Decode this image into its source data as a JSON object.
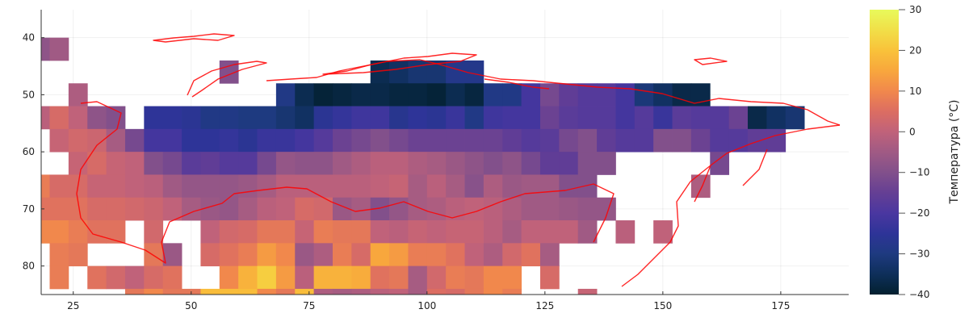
{
  "chart_data": {
    "type": "heatmap",
    "x": [
      18,
      22,
      26,
      30,
      34,
      38,
      42,
      46,
      50,
      54,
      58,
      62,
      66,
      70,
      74,
      78,
      82,
      86,
      90,
      94,
      98,
      102,
      106,
      110,
      114,
      118,
      122,
      126,
      130,
      134,
      138,
      142,
      146,
      150,
      154,
      158,
      162,
      166,
      170,
      174,
      178
    ],
    "y": [
      42,
      46,
      50,
      54,
      58,
      62,
      66,
      70,
      74,
      78,
      82,
      86
    ],
    "z": [
      [
        -8,
        -5,
        null,
        null,
        null,
        null,
        null,
        null,
        null,
        null,
        null,
        null,
        null,
        null,
        null,
        null,
        null,
        null,
        null,
        null,
        null,
        null,
        null,
        null,
        null,
        null,
        null,
        null,
        null,
        null,
        null,
        null,
        null,
        null,
        null,
        null,
        null,
        null,
        null,
        null,
        null
      ],
      [
        null,
        null,
        null,
        null,
        null,
        null,
        null,
        null,
        null,
        null,
        -10,
        null,
        null,
        null,
        null,
        null,
        null,
        null,
        -36,
        -34,
        -32,
        -32,
        -28,
        -28,
        null,
        null,
        null,
        null,
        null,
        null,
        null,
        null,
        null,
        null,
        null,
        null,
        null,
        null,
        null,
        null,
        null
      ],
      [
        null,
        null,
        -3,
        null,
        null,
        null,
        null,
        null,
        null,
        null,
        null,
        null,
        null,
        -29,
        -36,
        -39,
        -38,
        -37,
        -37,
        -38,
        -38,
        -39,
        -36,
        -38,
        -29,
        -29,
        -21,
        -12,
        -16,
        -18,
        -18,
        -21,
        -31,
        -34,
        -37,
        -37,
        null,
        null,
        null,
        null,
        null
      ],
      [
        -1,
        4,
        0,
        -8,
        -10,
        null,
        -25,
        -25,
        -26,
        -29,
        -29,
        -30,
        -30,
        -32,
        -34,
        -26,
        -24,
        -22,
        -22,
        -27,
        -25,
        -26,
        -23,
        -29,
        -22,
        -21,
        -21,
        -14,
        -17,
        -18,
        -18,
        -21,
        -18,
        -23,
        -17,
        -18,
        -18,
        -14,
        -37,
        -34,
        -32
      ],
      [
        null,
        1,
        3,
        2,
        -4,
        -12,
        -21,
        -21,
        -25,
        -25,
        -24,
        -26,
        -23,
        -23,
        -21,
        -18,
        -14,
        -12,
        -10,
        -12,
        -14,
        -14,
        -14,
        -14,
        -14,
        -16,
        -18,
        -17,
        -12,
        -10,
        -16,
        -18,
        -18,
        -10,
        -10,
        -14,
        -18,
        -18,
        -16,
        -16,
        null
      ],
      [
        null,
        null,
        1,
        4,
        1,
        0,
        -10,
        -12,
        -17,
        -16,
        -18,
        -18,
        -12,
        -7,
        -8,
        -8,
        -5,
        -3,
        -1,
        -1,
        -3,
        -4,
        -6,
        -8,
        -10,
        -8,
        -12,
        -16,
        -16,
        -10,
        -10,
        null,
        null,
        null,
        null,
        null,
        -12,
        null,
        null,
        null,
        null
      ],
      [
        8,
        4,
        4,
        1,
        1,
        0,
        -1,
        -5,
        -7,
        -7,
        -7,
        -6,
        -4,
        -1,
        -1,
        -1,
        -1,
        -1,
        0,
        1,
        -4,
        -1,
        -4,
        -9,
        -3,
        -6,
        -5,
        -5,
        -10,
        -10,
        null,
        null,
        null,
        null,
        null,
        -3,
        null,
        null,
        null,
        null,
        null
      ],
      [
        6,
        6,
        6,
        4,
        4,
        3,
        2,
        0,
        -4,
        -6,
        -7,
        -4,
        -1,
        0,
        4,
        3,
        -6,
        -4,
        -10,
        -7,
        -4,
        -3,
        -1,
        0,
        -1,
        -3,
        -5,
        -5,
        -6,
        -7,
        -7,
        null,
        null,
        null,
        null,
        null,
        null,
        null,
        null,
        null,
        null
      ],
      [
        10,
        10,
        8,
        6,
        6,
        null,
        3,
        null,
        null,
        0,
        3,
        4,
        7,
        7,
        1,
        8,
        7,
        7,
        0,
        -1,
        1,
        0,
        1,
        1,
        -1,
        -4,
        0,
        0,
        0,
        -5,
        null,
        -1,
        null,
        0,
        null,
        null,
        null,
        null,
        null,
        null,
        null
      ],
      [
        null,
        8,
        7,
        null,
        null,
        null,
        7,
        -6,
        null,
        4,
        6,
        8,
        13,
        10,
        -6,
        -3,
        8,
        4,
        15,
        13,
        8,
        8,
        6,
        0,
        -3,
        3,
        6,
        -4,
        null,
        null,
        null,
        null,
        null,
        null,
        null,
        null,
        null,
        null,
        null,
        null,
        null
      ],
      [
        null,
        8,
        null,
        6,
        3,
        0,
        4,
        6,
        null,
        null,
        10,
        17,
        22,
        13,
        -1,
        17,
        17,
        16,
        6,
        7,
        -4,
        3,
        8,
        7,
        10,
        10,
        null,
        4,
        null,
        null,
        null,
        null,
        null,
        null,
        null,
        null,
        null,
        null,
        null,
        null,
        null
      ],
      [
        null,
        null,
        null,
        null,
        null,
        7,
        10,
        7,
        7,
        19,
        19,
        19,
        10,
        7,
        19,
        -3,
        -4,
        -3,
        -1,
        0,
        -4,
        5,
        4,
        7,
        10,
        8,
        null,
        null,
        null,
        1,
        null,
        null,
        null,
        null,
        null,
        null,
        null,
        null,
        null,
        null,
        null
      ]
    ],
    "x_ticks": [
      "25",
      "50",
      "75",
      "100",
      "125",
      "150",
      "175"
    ],
    "y_ticks": [
      "40",
      "50",
      "60",
      "70",
      "80"
    ],
    "y_axis_inverted": true,
    "xlim": [
      18.2,
      189.4
    ],
    "ylim": [
      35.1,
      85
    ],
    "grid": true,
    "colorbar": {
      "label": "Температура (°C)",
      "range": [
        -40,
        30
      ],
      "ticks": [
        "30",
        "20",
        "10",
        "0",
        "−10",
        "−20",
        "−30",
        "−40"
      ],
      "colormap": "thermal",
      "colors": [
        "#03202f",
        "#0e2f5a",
        "#1e3a80",
        "#2e3498",
        "#4a37a0",
        "#653f94",
        "#82508b",
        "#a05a84",
        "#c0627a",
        "#dc6d62",
        "#f1884c",
        "#f8a73d",
        "#f9c23a",
        "#f1df48",
        "#e8fa5b"
      ]
    },
    "overlay_color": "#ff0000",
    "legend": "none"
  }
}
